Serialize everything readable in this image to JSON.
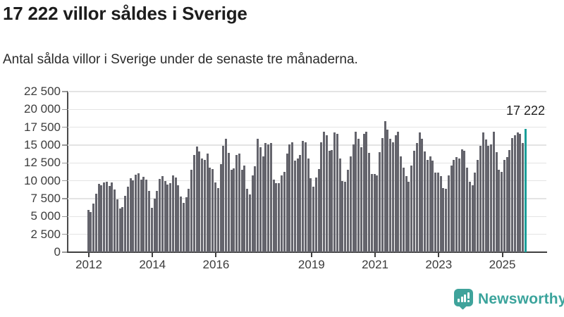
{
  "title": "17 222 villor såldes i Sverige",
  "subtitle": "Antal sålda villor i Sverige under de senaste tre månaderna.",
  "annotation": {
    "label": "17 222"
  },
  "branding": {
    "name": "Newsworthy",
    "icon": "newsworthy-speech-bubble-chart-icon"
  },
  "colors": {
    "bar": "#64646c",
    "highlight_bar": "#1a9e99",
    "brand": "#3ba49c",
    "grid": "#e4e4e4",
    "axis": "#3f3f3f",
    "title_text": "#1d1d1d",
    "tick_text": "#3d3d3d"
  },
  "chart_data": {
    "type": "bar",
    "title": "17 222 villor såldes i Sverige",
    "subtitle": "Antal sålda villor i Sverige under de senaste tre månaderna.",
    "xlabel": "",
    "ylabel": "",
    "frequency": "monthly",
    "x_start": "2012-01",
    "x_end": "2025-10",
    "ylim": [
      0,
      22500
    ],
    "grid": true,
    "yticks": [
      0,
      2500,
      5000,
      7500,
      10000,
      12500,
      15000,
      17500,
      20000,
      22500
    ],
    "ytick_labels": [
      "0",
      "2 500",
      "5 000",
      "7 500",
      "10 000",
      "12 500",
      "15 000",
      "17 500",
      "20 000",
      "22 500"
    ],
    "xtick_years": [
      2012,
      2014,
      2016,
      2019,
      2021,
      2023,
      2025
    ],
    "xtick_labels": [
      "2012",
      "2014",
      "2016",
      "2019",
      "2021",
      "2023",
      "2025"
    ],
    "highlight_last": true,
    "last_value": 17222,
    "last_value_label": "17 222",
    "values": [
      5900,
      5600,
      6800,
      8200,
      9600,
      9400,
      9800,
      9900,
      9300,
      9800,
      8800,
      7400,
      6100,
      6300,
      7900,
      9200,
      10400,
      10100,
      10900,
      11100,
      10200,
      10600,
      10200,
      8600,
      6200,
      7500,
      8600,
      10300,
      10700,
      10000,
      9500,
      9700,
      10800,
      10500,
      9400,
      7800,
      6900,
      7700,
      8900,
      11500,
      13600,
      14800,
      14100,
      13100,
      12900,
      13800,
      11800,
      11650,
      9800,
      9000,
      12300,
      14900,
      15900,
      13900,
      11500,
      11700,
      13600,
      13800,
      11500,
      12100,
      8850,
      8050,
      10800,
      12000,
      15900,
      14750,
      13450,
      15250,
      15100,
      15250,
      10150,
      9700,
      9700,
      10800,
      11300,
      13800,
      15100,
      15400,
      12800,
      13100,
      13600,
      15600,
      15400,
      13100,
      10350,
      9200,
      10500,
      11650,
      15400,
      16900,
      16400,
      14250,
      14350,
      16750,
      16550,
      13100,
      10000,
      9850,
      11500,
      13450,
      15100,
      16900,
      15900,
      14750,
      16550,
      16900,
      13950,
      11000,
      11000,
      10800,
      14000,
      16000,
      18400,
      17200,
      15900,
      15400,
      16400,
      16900,
      13450,
      11800,
      10650,
      9850,
      12150,
      14250,
      15250,
      16750,
      15900,
      14100,
      12950,
      13450,
      12800,
      11150,
      11150,
      10650,
      9000,
      8850,
      10800,
      12150,
      12950,
      13300,
      13100,
      14450,
      14250,
      11800,
      9850,
      9350,
      11150,
      12950,
      14900,
      16750,
      15750,
      14900,
      15100,
      16900,
      14000,
      11500,
      11300,
      12900,
      13300,
      14300,
      16000,
      16400,
      16750,
      16600,
      15300,
      17222
    ]
  }
}
